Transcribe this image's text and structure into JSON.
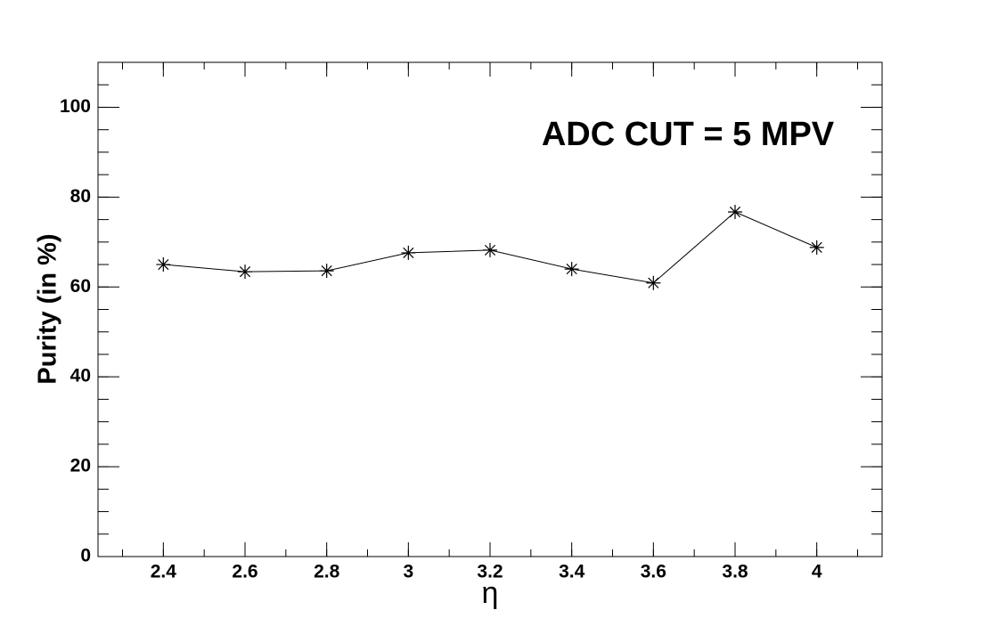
{
  "chart_data": {
    "type": "line",
    "ylabel": "Purity (in %)",
    "xlabel": "η",
    "annotation": "ADC CUT = 5 MPV",
    "x": [
      2.4,
      2.6,
      2.8,
      3.0,
      3.2,
      3.4,
      3.6,
      3.8,
      4.0
    ],
    "series": [
      {
        "name": "Purity",
        "color": "#000000",
        "values": [
          65.0,
          63.4,
          63.6,
          67.6,
          68.2,
          64.0,
          60.9,
          76.7,
          68.8
        ]
      }
    ],
    "xlim": [
      2.24,
      4.16
    ],
    "ylim": [
      0,
      110
    ],
    "xticks": [
      2.4,
      2.6,
      2.8,
      3,
      3.2,
      3.4,
      3.6,
      3.8,
      4
    ],
    "yticks": [
      0,
      20,
      40,
      60,
      80,
      100
    ]
  }
}
